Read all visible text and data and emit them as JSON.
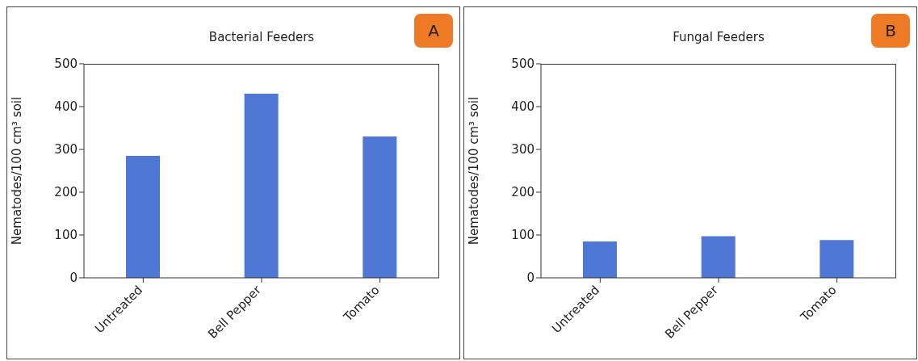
{
  "chart_data": [
    {
      "type": "bar",
      "title": "Bacterial Feeders",
      "ylabel": "Nematodes/100 cm³ soil",
      "categories": [
        "Untreated",
        "Bell Pepper",
        "Tomato"
      ],
      "values": [
        285,
        430,
        330
      ],
      "color": "#4f77d6",
      "ylim": [
        0,
        500
      ],
      "yticks": [
        0,
        100,
        200,
        300,
        400,
        500
      ],
      "grid": false,
      "annotations": [
        "A"
      ]
    },
    {
      "type": "bar",
      "title": "Fungal Feeders",
      "ylabel": "Nematodes/100 cm³ soil",
      "categories": [
        "Untreated",
        "Bell Pepper",
        "Tomato"
      ],
      "values": [
        85,
        97,
        88
      ],
      "color": "#4f77d6",
      "ylim": [
        0,
        500
      ],
      "yticks": [
        0,
        100,
        200,
        300,
        400,
        500
      ],
      "grid": false,
      "annotations": [
        "B"
      ]
    }
  ]
}
